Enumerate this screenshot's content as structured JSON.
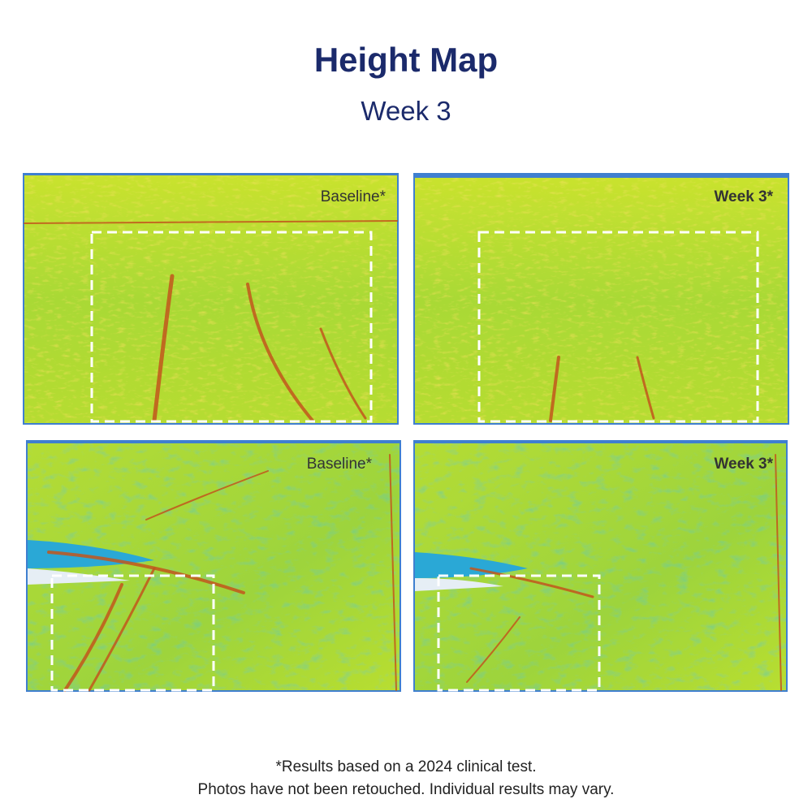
{
  "header": {
    "title": "Height Map",
    "subtitle": "Week 3"
  },
  "panels": [
    {
      "label": "Baseline*"
    },
    {
      "label": "Week 3*"
    },
    {
      "label": "Baseline*"
    },
    {
      "label": "Week 3*"
    }
  ],
  "footnote": {
    "lines": [
      "*Results based on a 2024 clinical test.",
      "Photos have not been retouched. Individual results may vary."
    ]
  }
}
